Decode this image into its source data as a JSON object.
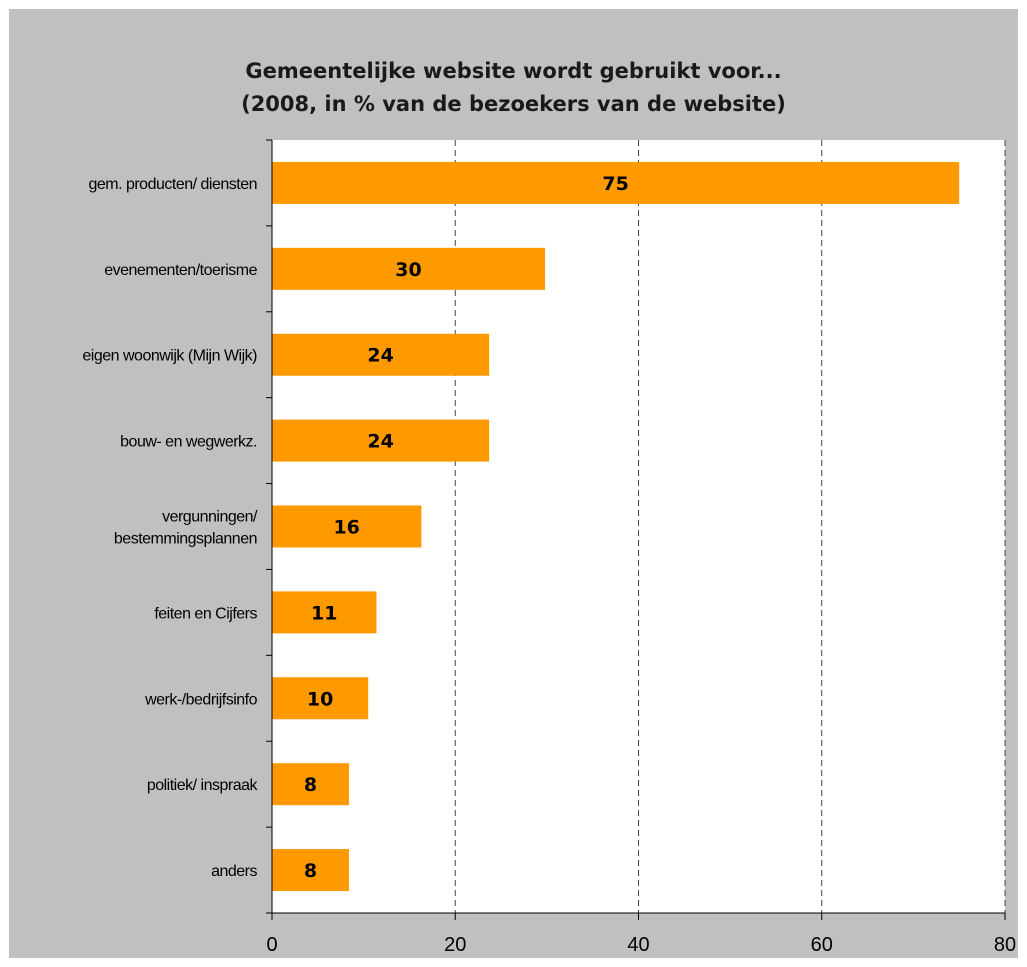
{
  "chart_data": {
    "type": "bar",
    "orientation": "horizontal",
    "title": [
      "Gemeentelijke website wordt gebruikt voor...",
      "(2008, in % van de bezoekers van de website)"
    ],
    "xlabel": "",
    "ylabel": "",
    "categories": [
      "gem. producten/ diensten",
      "evenementen/toerisme",
      "eigen woonwijk (Mijn Wijk)",
      "bouw- en wegwerkz.",
      "vergunningen/ bestemmingsplannen",
      "feiten en Cijfers",
      "werk-/bedrijfsinfo",
      "politiek/ inspraak",
      "anders"
    ],
    "category_lines": [
      [
        "gem. producten/ diensten"
      ],
      [
        "evenementen/toerisme"
      ],
      [
        "eigen woonwijk (Mijn Wijk)"
      ],
      [
        "bouw- en wegwerkz."
      ],
      [
        "vergunningen/",
        "bestemmingsplannen"
      ],
      [
        "feiten en Cijfers"
      ],
      [
        "werk-/bedrijfsinfo"
      ],
      [
        "politiek/ inspraak"
      ],
      [
        "anders"
      ]
    ],
    "values": [
      75,
      30,
      24,
      24,
      16,
      11,
      10,
      8,
      8
    ],
    "bar_values": [
      75,
      29.8,
      23.7,
      23.7,
      16.3,
      11.4,
      10.5,
      8.4,
      8.4
    ],
    "xlim": [
      0,
      80
    ],
    "xticks": [
      0,
      20,
      40,
      60,
      80
    ],
    "grid": "vertical dashed",
    "legend": "none",
    "colors": {
      "bar": "#ff9900",
      "frame": "#c0c0c0",
      "plot": "#ffffff",
      "grid": "#444444",
      "text": "#000000"
    }
  }
}
